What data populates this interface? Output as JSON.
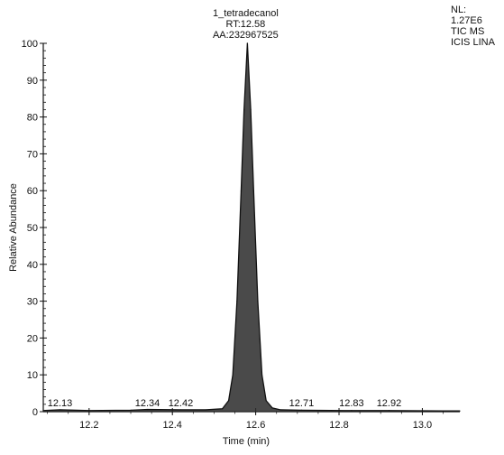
{
  "chart_data": {
    "type": "line",
    "title": "",
    "xlabel": "Time (min)",
    "ylabel": "Relative Abundance",
    "xlim": [
      12.09,
      13.09
    ],
    "ylim": [
      0,
      100
    ],
    "x_ticks": [
      12.2,
      12.4,
      12.6,
      12.8,
      13.0
    ],
    "x_tick_labels": [
      "12.2",
      "12.4",
      "12.6",
      "12.8",
      "13.0"
    ],
    "y_ticks": [
      0,
      10,
      20,
      30,
      40,
      50,
      60,
      70,
      80,
      90,
      100
    ],
    "y_tick_labels": [
      "0",
      "10",
      "20",
      "30",
      "40",
      "50",
      "60",
      "70",
      "80",
      "90",
      "100"
    ],
    "grid": false,
    "series": [
      {
        "color": "#111111",
        "x": [
          12.09,
          12.13,
          12.2,
          12.3,
          12.34,
          12.42,
          12.48,
          12.52,
          12.535,
          12.545,
          12.555,
          12.565,
          12.572,
          12.58,
          12.588,
          12.595,
          12.605,
          12.615,
          12.625,
          12.64,
          12.66,
          12.71,
          12.83,
          12.92,
          13.05,
          13.09
        ],
        "y": [
          0.3,
          0.5,
          0.3,
          0.4,
          0.6,
          0.5,
          0.5,
          0.8,
          3,
          10,
          30,
          60,
          82,
          100,
          82,
          60,
          30,
          10,
          3,
          1,
          0.5,
          0.4,
          0.3,
          0.3,
          0.2,
          0.2
        ]
      }
    ],
    "peak_labels": [
      {
        "text": "12.13",
        "x": 12.13,
        "y": 0.5
      },
      {
        "text": "12.34",
        "x": 12.34,
        "y": 0.6
      },
      {
        "text": "12.42",
        "x": 12.42,
        "y": 0.5
      },
      {
        "text": "12.71",
        "x": 12.71,
        "y": 0.4
      },
      {
        "text": "12.83",
        "x": 12.83,
        "y": 0.3
      },
      {
        "text": "12.92",
        "x": 12.92,
        "y": 0.3
      }
    ],
    "main_peak_annotation": {
      "x": 12.58,
      "y": 100,
      "lines": [
        "1_tetradecanol",
        "RT:12.58",
        "AA:232967525"
      ]
    },
    "info_box": {
      "lines": [
        "NL:",
        "1.27E6",
        "TIC MS",
        "ICIS LINA"
      ]
    }
  }
}
